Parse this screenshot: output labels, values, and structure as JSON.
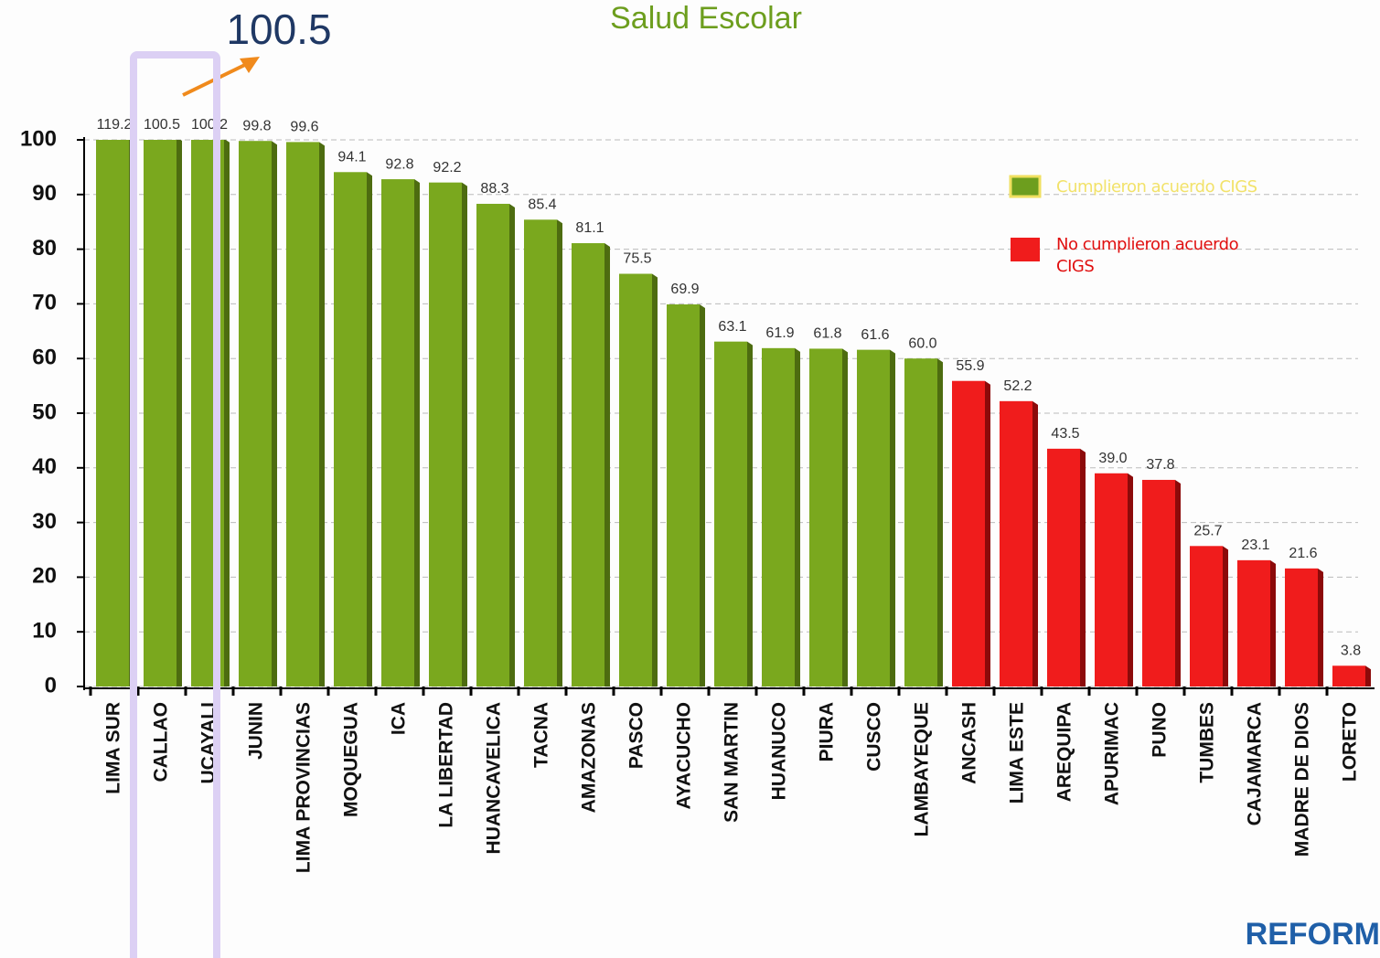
{
  "chart_data": {
    "type": "bar",
    "title": "Salud Escolar",
    "annotation": "100.5",
    "logo": "REFORM",
    "categories": [
      "LIMA SUR",
      "CALLAO",
      "UCAYALI",
      "JUNIN",
      "LIMA PROVINCIAS",
      "MOQUEGUA",
      "ICA",
      "LA LIBERTAD",
      "HUANCAVELICA",
      "TACNA",
      "AMAZONAS",
      "PASCO",
      "AYACUCHO",
      "SAN MARTIN",
      "HUANUCO",
      "PIURA",
      "CUSCO",
      "LAMBAYEQUE",
      "ANCASH",
      "LIMA ESTE",
      "AREQUIPA",
      "APURIMAC",
      "PUNO",
      "TUMBES",
      "CAJAMARCA",
      "MADRE DE DIOS",
      "LORETO"
    ],
    "series": [
      {
        "name": "Cumplieron acuerdo CIGS",
        "color": "#7aa81e",
        "values": [
          119.2,
          100.5,
          100.2,
          99.8,
          99.6,
          94.1,
          92.8,
          92.2,
          88.3,
          85.4,
          81.1,
          75.5,
          69.9,
          63.1,
          61.9,
          61.8,
          61.6,
          60.0,
          null,
          null,
          null,
          null,
          null,
          null,
          null,
          null,
          null
        ],
        "value_labels": [
          "119.2",
          "100.5",
          "100.2",
          "99.8",
          "99.6",
          "94.1",
          "92.8",
          "92.2",
          "88.3",
          "85.4",
          "81.1",
          "75.5",
          "69.9",
          "63.1",
          "61.9",
          "61.8",
          "61.6",
          "60.0",
          null,
          null,
          null,
          null,
          null,
          null,
          null,
          null,
          null
        ]
      },
      {
        "name": "No cumplieron acuerdo CIGS",
        "color": "#f01c1c",
        "values": [
          null,
          null,
          null,
          null,
          null,
          null,
          null,
          null,
          null,
          null,
          null,
          null,
          null,
          null,
          null,
          null,
          null,
          null,
          55.9,
          52.2,
          43.5,
          39.0,
          37.8,
          25.7,
          23.1,
          21.6,
          3.8
        ],
        "value_labels": [
          null,
          null,
          null,
          null,
          null,
          null,
          null,
          null,
          null,
          null,
          null,
          null,
          null,
          null,
          null,
          null,
          null,
          null,
          "55.9",
          "52.2",
          "43.5",
          "39.0",
          "37.8",
          "25.7",
          "23.1",
          "21.6",
          "3.8"
        ]
      }
    ],
    "ylim": [
      0,
      100
    ],
    "yticks": [
      0,
      10,
      20,
      30,
      40,
      50,
      60,
      70,
      80,
      90,
      100
    ],
    "grid": true
  }
}
